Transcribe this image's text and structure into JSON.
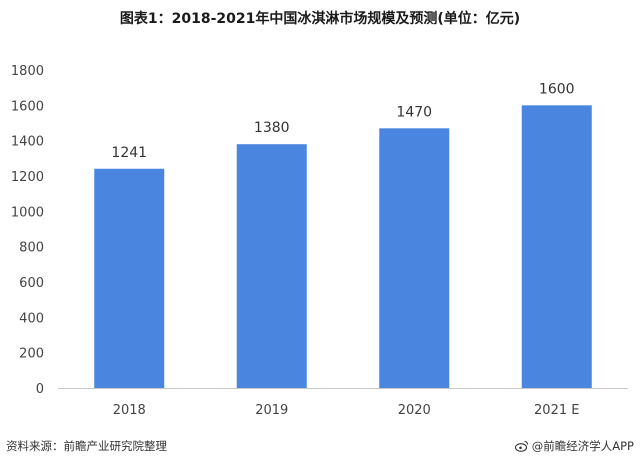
{
  "chart_data": {
    "type": "bar",
    "title": "图表1：2018-2021年中国冰淇淋市场规模及预测(单位：亿元)",
    "categories": [
      "2018",
      "2019",
      "2020",
      "2021 E"
    ],
    "values": [
      1241,
      1380,
      1470,
      1600
    ],
    "data_labels": [
      "1241",
      "1380",
      "1470",
      "1600"
    ],
    "ylim": [
      0,
      1800
    ],
    "yticks": [
      0,
      200,
      400,
      600,
      800,
      1000,
      1200,
      1400,
      1600,
      1800
    ],
    "grid": false,
    "bar_color": "#4a86e0",
    "xlabel": "",
    "ylabel": ""
  },
  "footer": {
    "source": "资料来源：前瞻产业研究院整理",
    "brand": "@前瞻经济学人APP"
  }
}
